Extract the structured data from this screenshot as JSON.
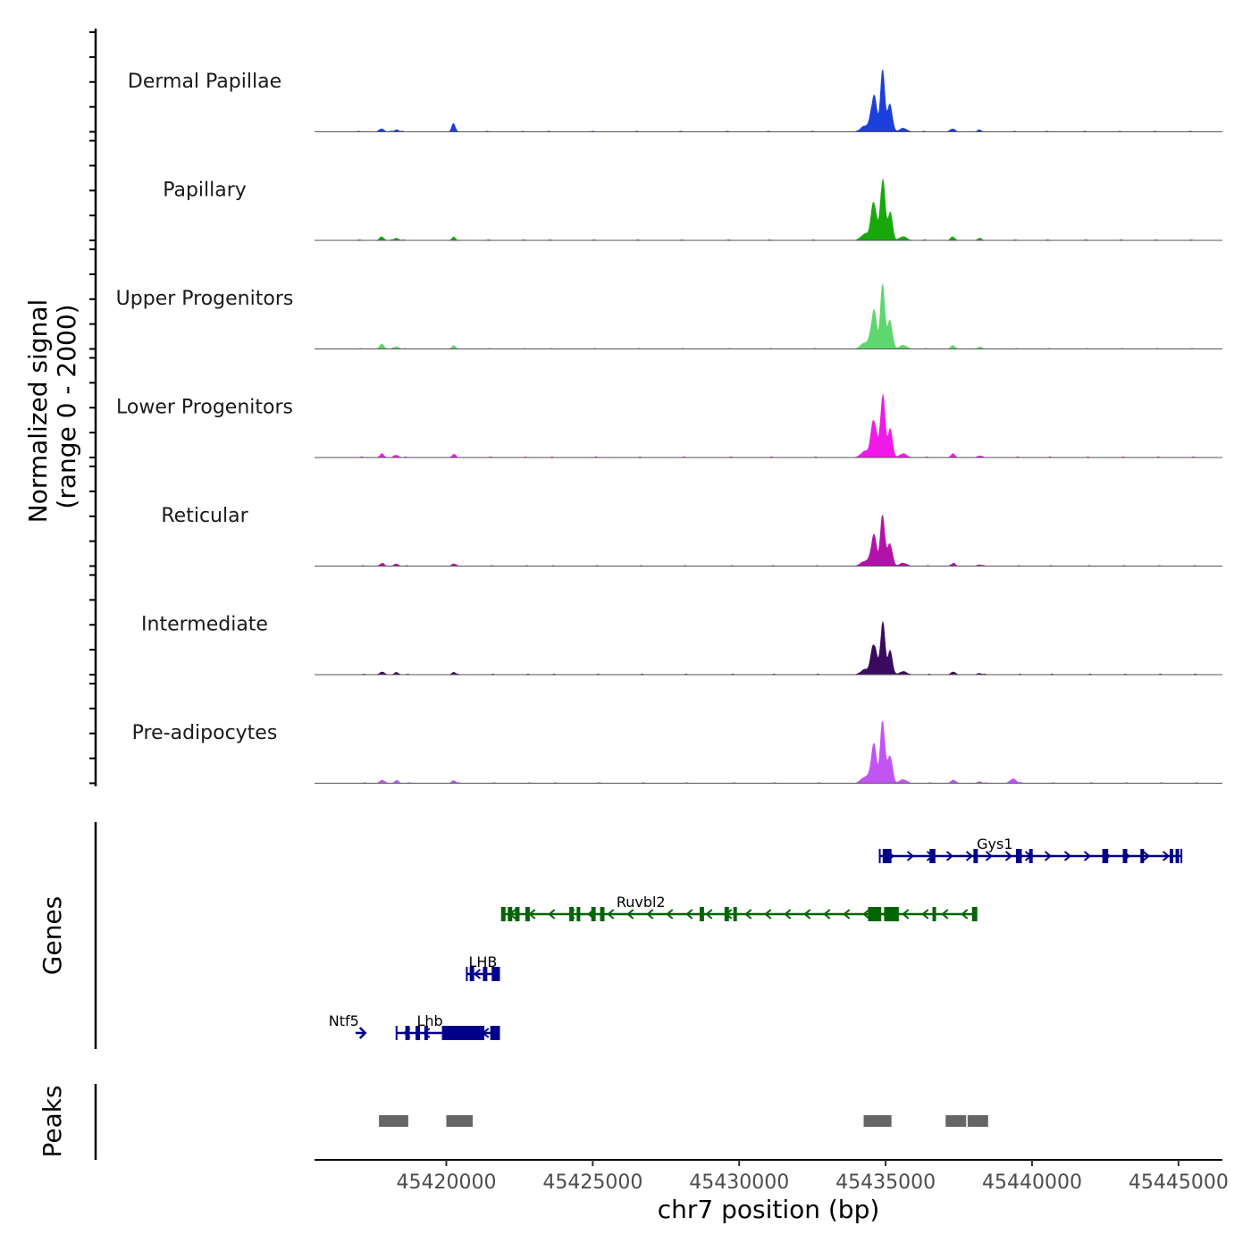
{
  "chart_data": {
    "type": "area",
    "genome_browser": true,
    "x_range_bp": [
      45415500,
      45446500
    ],
    "xlabel": "chr7 position (bp)",
    "x_ticks": [
      45420000,
      45425000,
      45430000,
      45435000,
      45440000,
      45445000
    ],
    "x_tick_labels": [
      "45420000",
      "45425000",
      "45430000",
      "45435000",
      "45440000",
      "45445000"
    ],
    "ylabel_line1": "Normalized signal",
    "ylabel_line2": "(range 0 - 2000)",
    "ylim": [
      0,
      2000
    ],
    "tracks": [
      {
        "name": "Dermal Papillae",
        "color": "#1a3fdc",
        "peak": 1900
      },
      {
        "name": "Papillary",
        "color": "#18a80c",
        "peak": 2000
      },
      {
        "name": "Upper Progenitors",
        "color": "#5ed86e",
        "peak": 2000
      },
      {
        "name": "Lower Progenitors",
        "color": "#f01ae8",
        "peak": 2000
      },
      {
        "name": "Reticular",
        "color": "#b312a8",
        "peak": 1600
      },
      {
        "name": "Intermediate",
        "color": "#3a0a5e",
        "peak": 1650
      },
      {
        "name": "Pre-adipocytes",
        "color": "#c254f5",
        "peak": 2000
      }
    ],
    "genes_panel_label": "Genes",
    "genes": [
      {
        "name": "Gys1",
        "strand": "+",
        "start": 45434800,
        "end": 45445100,
        "color": "#00008b",
        "exons": [
          [
            45434900,
            45435200
          ],
          [
            45436500,
            45436700
          ],
          [
            45438000,
            45438150
          ],
          [
            45439450,
            45439650
          ],
          [
            45439900,
            45440000
          ],
          [
            45442400,
            45442600
          ],
          [
            45443100,
            45443250
          ],
          [
            45443700,
            45443800
          ],
          [
            45444700,
            45444800
          ],
          [
            45444900,
            45445000
          ]
        ]
      },
      {
        "name": "Ruvbl2",
        "strand": "-",
        "start": 45421900,
        "end": 45438100,
        "color": "#006400",
        "exons": [
          [
            45421900,
            45422000
          ],
          [
            45422100,
            45422250
          ],
          [
            45422350,
            45422500
          ],
          [
            45422700,
            45422850
          ],
          [
            45424200,
            45424350
          ],
          [
            45424450,
            45424550
          ],
          [
            45424950,
            45425100
          ],
          [
            45425250,
            45425400
          ],
          [
            45428650,
            45428800
          ],
          [
            45429500,
            45429650
          ],
          [
            45429800,
            45429900
          ],
          [
            45434400,
            45434850
          ],
          [
            45434950,
            45435450
          ],
          [
            45436600,
            45436700
          ],
          [
            45437950,
            45438100
          ]
        ]
      },
      {
        "name": "LHB",
        "strand": "-",
        "start": 45420700,
        "end": 45421800,
        "color": "#00008b",
        "exons": [
          [
            45420800,
            45420950
          ],
          [
            45421250,
            45421400
          ],
          [
            45421550,
            45421800
          ]
        ]
      },
      {
        "name": "Ntf5",
        "strand": "+",
        "start": 45416900,
        "end": 45417200,
        "color": "#00008b",
        "exons": []
      },
      {
        "name": "Lhb",
        "strand": "-",
        "start": 45418300,
        "end": 45421800,
        "color": "#00008b",
        "exons": [
          [
            45418600,
            45418750
          ],
          [
            45418950,
            45419100
          ],
          [
            45419250,
            45419350
          ],
          [
            45419850,
            45421300
          ],
          [
            45421500,
            45421800
          ]
        ]
      }
    ],
    "peaks_panel_label": "Peaks",
    "peaks": [
      [
        45417700,
        45418700
      ],
      [
        45420000,
        45420900
      ],
      [
        45434250,
        45435200
      ],
      [
        45437050,
        45437750
      ],
      [
        45437800,
        45438500
      ]
    ],
    "peak_color": "#666666"
  }
}
